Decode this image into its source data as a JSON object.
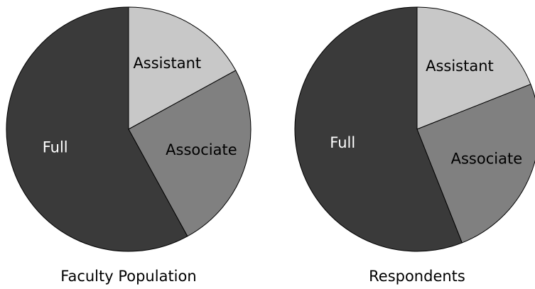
{
  "chart_data": [
    {
      "type": "pie",
      "title": "Faculty Population",
      "categories": [
        "Assistant",
        "Associate",
        "Full"
      ],
      "values": [
        17,
        25,
        58
      ],
      "colors": [
        "#c8c8c8",
        "#808080",
        "#3a3a3a"
      ]
    },
    {
      "type": "pie",
      "title": "Respondents",
      "categories": [
        "Assistant",
        "Associate",
        "Full"
      ],
      "values": [
        19,
        25,
        56
      ],
      "colors": [
        "#c8c8c8",
        "#808080",
        "#3a3a3a"
      ]
    }
  ]
}
